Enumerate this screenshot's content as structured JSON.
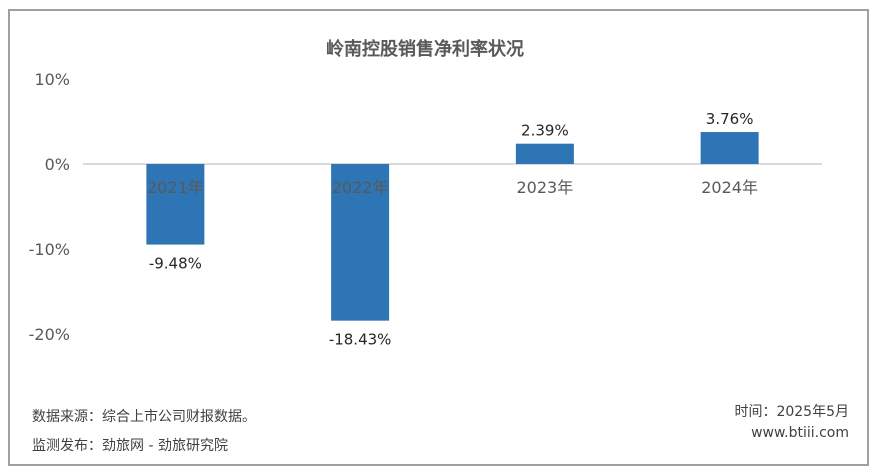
{
  "chart_data": {
    "type": "bar",
    "title": "岭南控股销售净利率状况",
    "categories": [
      "2021年",
      "2022年",
      "2023年",
      "2024年"
    ],
    "values": [
      -9.48,
      -18.43,
      2.39,
      3.76
    ],
    "data_labels": [
      "-9.48%",
      "-18.43%",
      "2.39%",
      "3.76%"
    ],
    "ylim": [
      -20,
      10
    ],
    "yticks": [
      10,
      0,
      -10,
      -20
    ],
    "ytick_labels": [
      "10%",
      "0%",
      "-10%",
      "-20%"
    ],
    "xlabel": "",
    "ylabel": "",
    "grid": false,
    "legend": "none",
    "bar_color": "#2e75b6"
  },
  "footer": {
    "source": "数据来源：综合上市公司财报数据。",
    "publisher": "监测发布：劲旅网 - 劲旅研究院",
    "date": "时间：2025年5月",
    "website": "www.btiii.com"
  }
}
